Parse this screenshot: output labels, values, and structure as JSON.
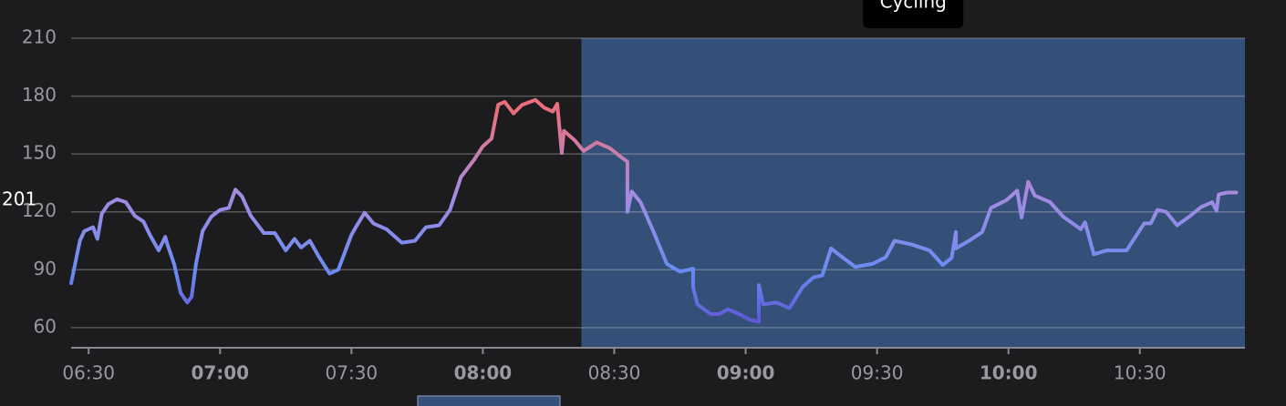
{
  "chart_data": {
    "type": "line",
    "annotation": "201",
    "x": [
      386,
      388,
      389,
      391,
      392,
      393,
      394.5,
      396.5,
      398.5,
      400.5,
      402.5,
      404,
      406,
      407.5,
      408,
      409.5,
      411,
      412.5,
      413.5,
      414.5,
      416,
      418,
      420,
      422,
      423.5,
      425,
      427,
      430,
      432.5,
      435,
      437,
      438.5,
      440.5,
      442.5,
      445,
      447,
      450,
      451,
      453,
      455,
      458,
      461.5,
      464.5,
      467,
      470,
      472.5,
      475,
      478,
      480,
      482,
      483.5,
      485,
      487,
      489,
      492,
      494,
      496,
      497,
      498,
      498.5,
      501,
      503,
      506,
      509,
      511.5,
      513,
      513,
      514,
      516,
      519,
      522,
      525,
      528,
      528,
      529,
      532,
      534,
      536,
      538.5,
      541,
      543,
      543,
      544,
      547,
      550,
      553,
      555.5,
      557.5,
      559.5,
      561.5,
      565,
      569,
      572,
      574,
      578,
      582,
      585,
      587,
      588,
      588,
      591,
      594,
      596,
      599.5,
      602,
      603,
      604.5,
      606,
      609.5,
      612.5,
      616.5,
      617.5,
      619.5,
      622.5,
      627,
      631,
      632.5,
      634,
      636,
      638.5,
      641,
      644,
      646.5,
      647.5,
      648,
      650,
      652
    ],
    "values": [
      83,
      105,
      110,
      112,
      106,
      119,
      124,
      126.5,
      125,
      118,
      115,
      108,
      100,
      107,
      103,
      93,
      78,
      73,
      76,
      93,
      110,
      117.5,
      121,
      122,
      131.5,
      128,
      118,
      109,
      109,
      100,
      106,
      101.5,
      105,
      97,
      88,
      90,
      108,
      112,
      119.5,
      114,
      111,
      104,
      105,
      112,
      113,
      121,
      138,
      147,
      154,
      158,
      175.5,
      177,
      171,
      175.5,
      178,
      174,
      172,
      176,
      150.5,
      162,
      157,
      151.5,
      156,
      153,
      148.5,
      146,
      120,
      130.5,
      125,
      109.5,
      93,
      89,
      90.5,
      81,
      72,
      67,
      67,
      69.5,
      67,
      64,
      63,
      82,
      72,
      73,
      70,
      81,
      86,
      87,
      101,
      97.5,
      91.5,
      93,
      96.5,
      105,
      103,
      100,
      92.5,
      96,
      109.5,
      101,
      105,
      109.5,
      122,
      126,
      131,
      117,
      135.5,
      128.5,
      125,
      117.5,
      111,
      114.5,
      98,
      100,
      100,
      114,
      114,
      121,
      120,
      113,
      117,
      122.5,
      125,
      120.5,
      129,
      130,
      130
    ],
    "colors": [
      "#5b3fc9",
      "#6a8cf2",
      "#a68be0",
      "#e8717e",
      "#f0606c"
    ],
    "xlim": [
      386,
      654
    ],
    "ylim": [
      50,
      210
    ],
    "yticks": [
      60,
      90,
      120,
      150,
      180,
      210
    ],
    "xticks": [
      {
        "value": 390,
        "label": "06:30"
      },
      {
        "value": 420,
        "label": "07:00"
      },
      {
        "value": 450,
        "label": "07:30"
      },
      {
        "value": 480,
        "label": "08:00"
      },
      {
        "value": 510,
        "label": "08:30"
      },
      {
        "value": 540,
        "label": "09:00"
      },
      {
        "value": 570,
        "label": "09:30"
      },
      {
        "value": 600,
        "label": "10:00"
      },
      {
        "value": 630,
        "label": "10:30"
      }
    ],
    "highlight": {
      "label": "Cycling",
      "start": 502.5,
      "end": 654,
      "color": "#344f78"
    },
    "grid": true
  }
}
